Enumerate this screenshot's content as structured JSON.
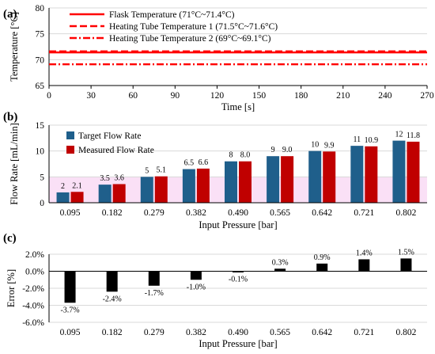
{
  "chart_data": [
    {
      "panel_label": "(a)",
      "type": "line",
      "xlabel": "Time [s]",
      "ylabel": "Temperature [°C]",
      "xlim": [
        0,
        270
      ],
      "ylim": [
        65,
        80
      ],
      "xticks": [
        0,
        30,
        60,
        90,
        120,
        150,
        180,
        210,
        240,
        270
      ],
      "yticks": [
        65,
        70,
        75,
        80
      ],
      "grid": "horizontal",
      "legend": "top-left",
      "series": [
        {
          "name": "Flask Temperature (71°C~71.4°C)",
          "style": "solid",
          "color": "#ff0000",
          "x": [
            0,
            270
          ],
          "values": [
            71.4,
            71.4
          ]
        },
        {
          "name": "Heating Tube Temperature 1 (71.5°C~71.6°C)",
          "style": "dashed",
          "color": "#ff0000",
          "x": [
            0,
            270
          ],
          "values": [
            71.6,
            71.6
          ]
        },
        {
          "name": "Heating Tube Temperature 2 (69°C~69.1°C)",
          "style": "dashdot",
          "color": "#ff0000",
          "x": [
            0,
            270
          ],
          "values": [
            69.1,
            69.1
          ]
        }
      ]
    },
    {
      "panel_label": "(b)",
      "type": "bar",
      "xlabel": "Input Pressure [bar]",
      "ylabel": "Flow Rate [mL/min]",
      "ylim": [
        0,
        15
      ],
      "yticks": [
        0,
        5,
        10,
        15
      ],
      "grid": "horizontal",
      "legend": "top-left",
      "categories": [
        "0.095",
        "0.182",
        "0.279",
        "0.382",
        "0.490",
        "0.565",
        "0.642",
        "0.721",
        "0.802"
      ],
      "series": [
        {
          "name": "Target Flow Rate",
          "color": "#1f5f8b",
          "values": [
            2,
            3.5,
            5,
            6.5,
            8,
            9,
            10,
            11,
            12
          ],
          "labels": [
            "2",
            "3.5",
            "5",
            "6.5",
            "8",
            "9",
            "10",
            "11",
            "12"
          ]
        },
        {
          "name": "Measured Flow Rate",
          "color": "#c00000",
          "values": [
            2.1,
            3.6,
            5.1,
            6.6,
            8.0,
            9.0,
            9.9,
            10.9,
            11.8
          ],
          "labels": [
            "2.1",
            "3.6",
            "5.1",
            "6.6",
            "8.0",
            "9.0",
            "9.9",
            "10.9",
            "11.8"
          ]
        }
      ],
      "highlight_band": {
        "from": 0,
        "to": 5,
        "color": "#f5c6ef"
      }
    },
    {
      "panel_label": "(c)",
      "type": "bar",
      "xlabel": "Input Pressure [bar]",
      "ylabel": "Error [%]",
      "ylim": [
        -6.0,
        2.0
      ],
      "yticks": [
        -6.0,
        -4.0,
        -2.0,
        0.0,
        2.0
      ],
      "ytick_labels": [
        "-6.0%",
        "-4.0%",
        "-2.0%",
        "0.0%",
        "2.0%"
      ],
      "grid": "horizontal",
      "categories": [
        "0.095",
        "0.182",
        "0.279",
        "0.382",
        "0.490",
        "0.565",
        "0.642",
        "0.721",
        "0.802"
      ],
      "values": [
        -3.7,
        -2.4,
        -1.7,
        -1.0,
        -0.1,
        0.3,
        0.9,
        1.4,
        1.5
      ],
      "labels": [
        "-3.7%",
        "-2.4%",
        "-1.7%",
        "-1.0%",
        "-0.1%",
        "0.3%",
        "0.9%",
        "1.4%",
        "1.5%"
      ],
      "color": "#000000"
    }
  ]
}
